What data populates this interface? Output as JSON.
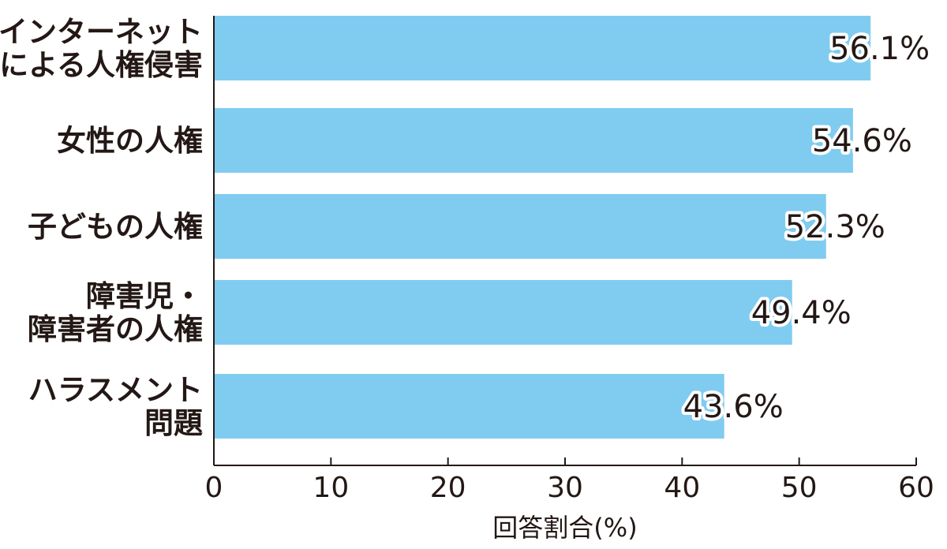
{
  "chart_data": {
    "type": "bar",
    "orientation": "horizontal",
    "categories": [
      [
        "インターネット",
        "による人権侵害"
      ],
      [
        "女性の人権"
      ],
      [
        "子どもの人権"
      ],
      [
        "障害児・",
        "障害者の人権"
      ],
      [
        "ハラスメント",
        "問題"
      ]
    ],
    "values": [
      56.1,
      54.6,
      52.3,
      49.4,
      43.6
    ],
    "value_labels": [
      "56.1%",
      "54.6%",
      "52.3%",
      "49.4%",
      "43.6%"
    ],
    "xlabel": "回答割合(%)",
    "xlim": [
      0,
      60
    ],
    "xticks": [
      0,
      10,
      20,
      30,
      40,
      50,
      60
    ],
    "grid": false,
    "bar_color": "#80ccf0",
    "axis_color": "#231815"
  }
}
